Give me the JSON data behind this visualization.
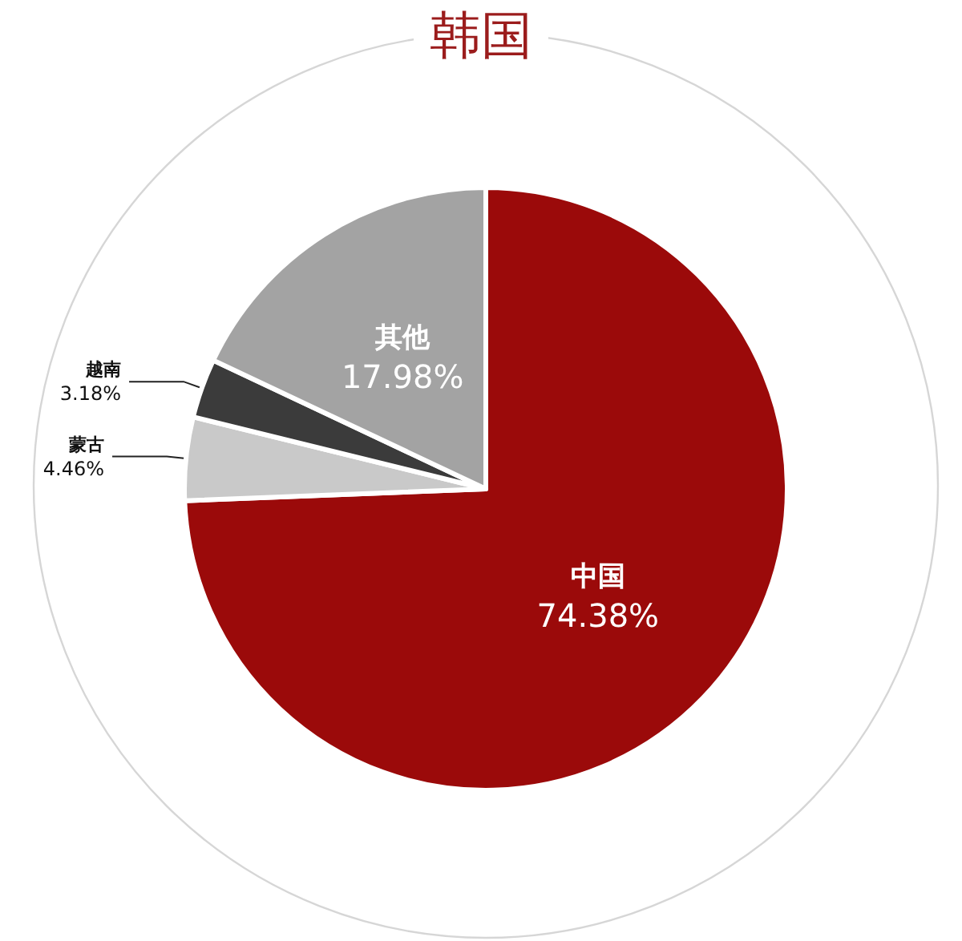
{
  "chart_data": {
    "type": "pie",
    "title": "韩国",
    "categories": [
      "中国",
      "蒙古",
      "越南",
      "其他"
    ],
    "values": [
      74.38,
      4.46,
      3.18,
      17.98
    ],
    "colors": [
      "#9b0a0a",
      "#c9c9c9",
      "#3b3b3b",
      "#a3a3a3"
    ],
    "value_labels": [
      "74.38%",
      "4.46%",
      "3.18%",
      "17.98%"
    ]
  }
}
